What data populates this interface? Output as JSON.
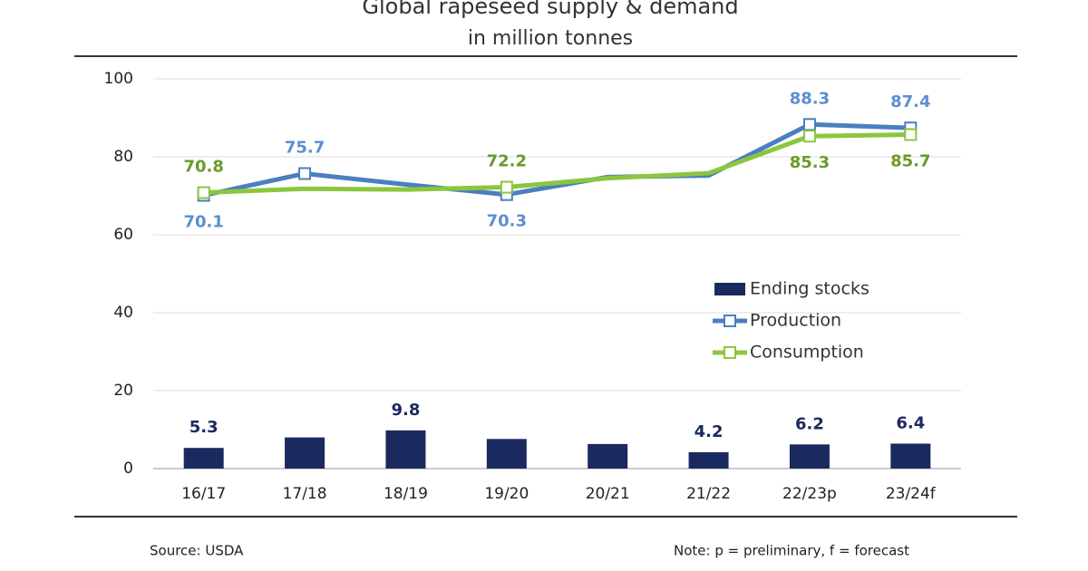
{
  "chart_data": {
    "type": "combo",
    "title": "Global rapeseed supply & demand",
    "subtitle": "in million tonnes",
    "categories": [
      "16/17",
      "17/18",
      "18/19",
      "19/20",
      "20/21",
      "21/22",
      "22/23p",
      "23/24f"
    ],
    "series": [
      {
        "name": "Ending stocks",
        "type": "bar",
        "color": "#1b2a5e",
        "values": [
          5.3,
          8.0,
          9.8,
          7.6,
          6.3,
          4.2,
          6.2,
          6.4
        ],
        "labeled": [
          0,
          2,
          5,
          6,
          7
        ]
      },
      {
        "name": "Production",
        "type": "line",
        "color": "#4a7fc1",
        "label_color": "#5b8fd0",
        "values": [
          70.1,
          75.7,
          72.9,
          70.3,
          74.8,
          75.2,
          88.3,
          87.4
        ],
        "labeled": [
          0,
          1,
          3,
          6,
          7
        ]
      },
      {
        "name": "Consumption",
        "type": "line",
        "color": "#8cc63f",
        "label_color": "#6b9a2a",
        "values": [
          70.8,
          71.8,
          71.6,
          72.2,
          74.5,
          75.8,
          85.3,
          85.7
        ],
        "labeled": [
          0,
          3,
          6,
          7
        ]
      }
    ],
    "ylim": [
      0,
      100
    ],
    "yticks": [
      0,
      20,
      40,
      60,
      80,
      100
    ],
    "grid": true,
    "source": "Source: USDA",
    "note": "Note: p = preliminary, f = forecast"
  }
}
